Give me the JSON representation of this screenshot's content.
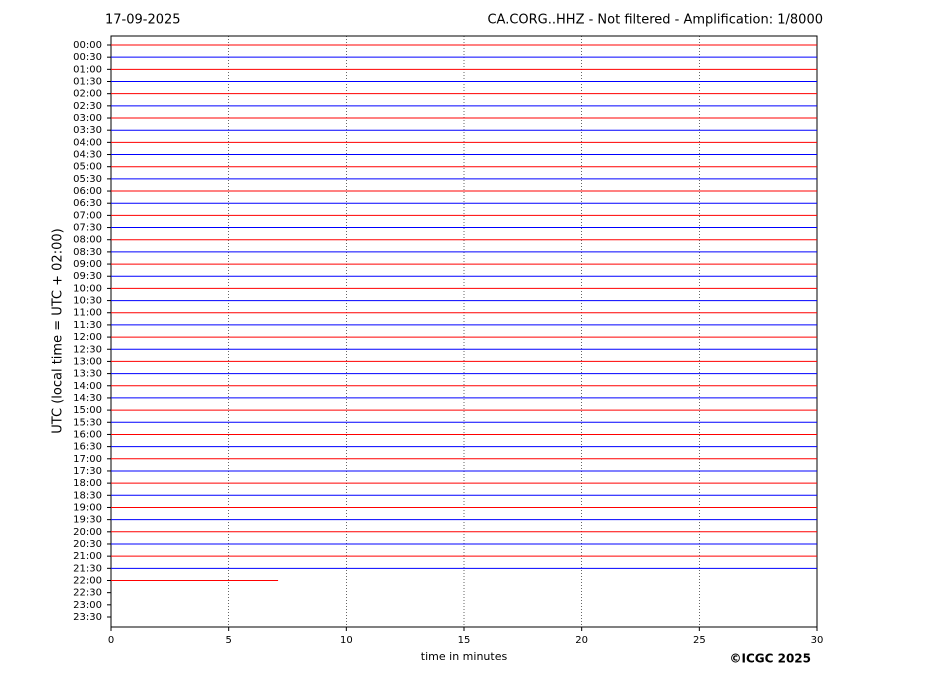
{
  "chart_data": {
    "type": "helicorder",
    "date": "17-09-2025",
    "title": "CA.CORG..HHZ - Not filtered - Amplification: 1/8000",
    "x_label": "time in minutes",
    "y_label": "UTC (local time = UTC + 02:00)",
    "credit": "©ICGC 2025",
    "xlim": [
      0,
      30
    ],
    "xticks": [
      0,
      5,
      10,
      15,
      20,
      25,
      30
    ],
    "grid": true,
    "colors": [
      "#ff0000",
      "#0000ff"
    ],
    "categories": [
      "00:00",
      "00:30",
      "01:00",
      "01:30",
      "02:00",
      "02:30",
      "03:00",
      "03:30",
      "04:00",
      "04:30",
      "05:00",
      "05:30",
      "06:00",
      "06:30",
      "07:00",
      "07:30",
      "08:00",
      "08:30",
      "09:00",
      "09:30",
      "10:00",
      "10:30",
      "11:00",
      "11:30",
      "12:00",
      "12:30",
      "13:00",
      "13:30",
      "14:00",
      "14:30",
      "15:00",
      "15:30",
      "16:00",
      "16:30",
      "17:00",
      "17:30",
      "18:00",
      "18:30",
      "19:00",
      "19:30",
      "20:00",
      "20:30",
      "21:00",
      "21:30",
      "22:00",
      "22:30",
      "23:00",
      "23:30"
    ],
    "values": [
      30,
      30,
      30,
      30,
      30,
      30,
      30,
      30,
      30,
      30,
      30,
      30,
      30,
      30,
      30,
      30,
      30,
      30,
      30,
      30,
      30,
      30,
      30,
      30,
      30,
      30,
      30,
      30,
      30,
      30,
      30,
      30,
      30,
      30,
      30,
      30,
      30,
      30,
      30,
      30,
      30,
      30,
      30,
      30,
      7.1,
      null,
      null,
      null
    ]
  }
}
